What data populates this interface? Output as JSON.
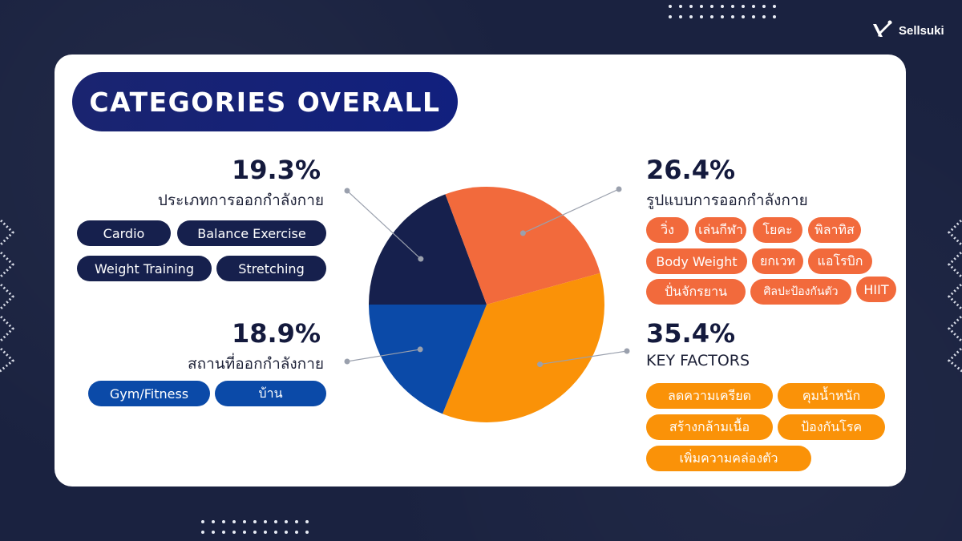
{
  "header": {
    "logo_text": "Sellsuki"
  },
  "title": "CATEGORIES OVERALL",
  "colors": {
    "background": "#1a2240",
    "card": "#ffffff",
    "title_pill": "#14237a",
    "navy": "#16204d",
    "blue": "#0b4aa8",
    "red_orange": "#f26a3c",
    "orange": "#fa9208"
  },
  "sections": {
    "type": {
      "percent": "19.3%",
      "label": "ประเภทการออกกำลังกาย",
      "tags": [
        "Cardio",
        "Balance Exercise",
        "Weight Training",
        "Stretching"
      ]
    },
    "place": {
      "percent": "18.9%",
      "label": "สถานที่ออกกำลังกาย",
      "tags": [
        "Gym/Fitness",
        "บ้าน"
      ]
    },
    "style": {
      "percent": "26.4%",
      "label": "รูปแบบการออกกำลังกาย",
      "tags": [
        "วิ่ง",
        "เล่นกีฬา",
        "โยคะ",
        "พิลาทิส",
        "Body Weight",
        "ยกเวท",
        "แอโรบิก",
        "ปั่นจักรยาน",
        "ศิลปะป้องกันตัว",
        "HIIT"
      ]
    },
    "factors": {
      "percent": "35.4%",
      "label": "KEY FACTORS",
      "tags": [
        "ลดความเครียด",
        "คุมน้ำหนัก",
        "สร้างกล้ามเนื้อ",
        "ป้องกันโรค",
        "เพิ่มความคล่องตัว"
      ]
    }
  },
  "chart_data": {
    "type": "pie",
    "slices": [
      {
        "label": "ประเภทการออกกำลังกาย",
        "value": 19.3,
        "color": "#16204d"
      },
      {
        "label": "รูปแบบการออกกำลังกาย",
        "value": 26.4,
        "color": "#f26a3c"
      },
      {
        "label": "KEY FACTORS",
        "value": 35.4,
        "color": "#fa9208"
      },
      {
        "label": "สถานที่ออกกำลังกาย",
        "value": 18.9,
        "color": "#0b4aa8"
      }
    ]
  }
}
